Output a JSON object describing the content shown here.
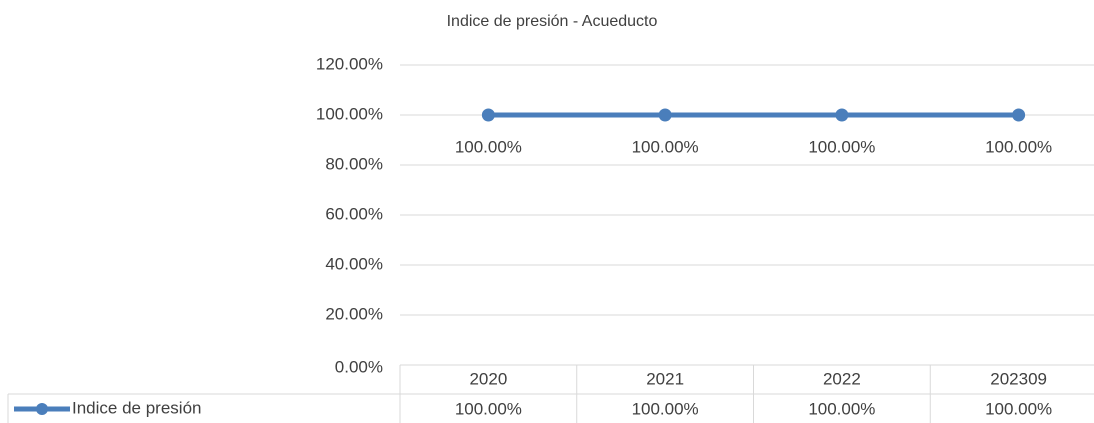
{
  "chart_data": {
    "type": "line",
    "title": "Indice de presión - Acueducto",
    "categories": [
      "2020",
      "2021",
      "2022",
      "202309"
    ],
    "series": [
      {
        "name": "Indice de presión",
        "color": "#4a7ebb",
        "values": [
          100,
          100,
          100,
          100
        ],
        "value_labels": [
          "100.00%",
          "100.00%",
          "100.00%",
          "100.00%"
        ]
      }
    ],
    "ylim": [
      0,
      120
    ],
    "yticks": [
      {
        "value": 0,
        "label": "0.00%"
      },
      {
        "value": 20,
        "label": "20.00%"
      },
      {
        "value": 40,
        "label": "40.00%"
      },
      {
        "value": 60,
        "label": "60.00%"
      },
      {
        "value": 80,
        "label": "80.00%"
      },
      {
        "value": 100,
        "label": "100.00%"
      },
      {
        "value": 120,
        "label": "120.00%"
      }
    ],
    "grid": true,
    "data_table": true
  }
}
